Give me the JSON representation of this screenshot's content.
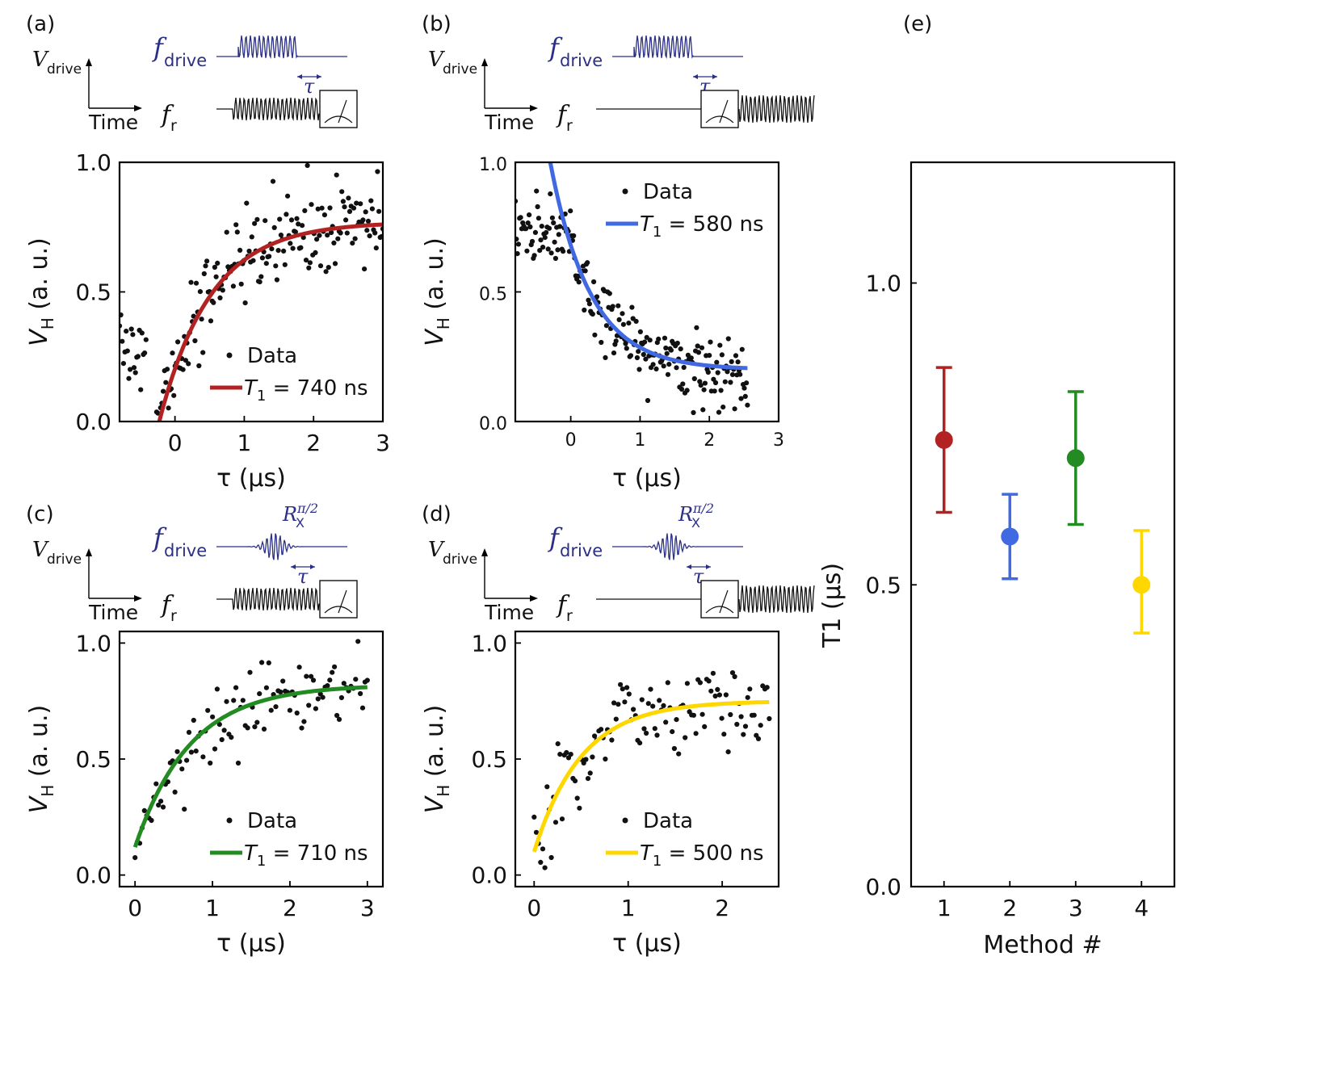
{
  "chart_data": [
    {
      "panel": "(a)",
      "type": "scatter",
      "xlabel": "τ (μs)",
      "ylabel": "V",
      "ylabel_sub": "H",
      "ylabel_unit": "(a. u.)",
      "xlim": [
        -0.8,
        3.0
      ],
      "ylim": [
        0,
        1
      ],
      "xticks": [
        "0",
        "1",
        "2",
        "3"
      ],
      "yticks": [
        "0.0",
        "0.5",
        "1.0"
      ],
      "legend_data": "Data",
      "legend_fit": "T",
      "legend_fit_sub": "1",
      "legend_fit_value": " = 740 ns",
      "legend_placement": "bottom-right",
      "fit": {
        "A": 0.85,
        "B": 0.77,
        "T1_us": 0.74,
        "x0": -0.3
      },
      "color": "#b22222",
      "seed": 11,
      "noise": 0.09,
      "npoints": 200,
      "sequence": {
        "drive_label": "f",
        "drive_sub": "drive",
        "read_label": "f",
        "read_sub": "r",
        "vaxis_label": "V",
        "vaxis_sub": "drive",
        "time_label": "Time",
        "tau_label": "τ",
        "mode": "readout-during",
        "pulse": "square"
      }
    },
    {
      "panel": "(b)",
      "type": "scatter",
      "xlabel": "τ (μs)",
      "ylabel": "V",
      "ylabel_sub": "H",
      "ylabel_unit": "(a. u.)",
      "xlim": [
        -0.8,
        3.0
      ],
      "ylim": [
        0,
        1
      ],
      "xticks": [
        "0",
        "1",
        "2",
        "3"
      ],
      "yticks": [
        "0.0",
        "0.5",
        "1.0"
      ],
      "legend_data": "Data",
      "legend_fit": "T",
      "legend_fit_sub": "1",
      "legend_fit_value": " = 580 ns",
      "legend_placement": "top-right",
      "fit": {
        "A": -0.48,
        "B": 0.2,
        "T1_us": 0.58,
        "x0": 0.0
      },
      "color": "#4169e1",
      "seed": 23,
      "noise": 0.07,
      "npoints": 220,
      "sequence": {
        "drive_label": "f",
        "drive_sub": "drive",
        "read_label": "f",
        "read_sub": "r",
        "vaxis_label": "V",
        "vaxis_sub": "drive",
        "time_label": "Time",
        "tau_label": "τ",
        "mode": "readout-after",
        "pulse": "square"
      }
    },
    {
      "panel": "(c)",
      "type": "scatter",
      "xlabel": "τ (μs)",
      "ylabel": "V",
      "ylabel_sub": "H",
      "ylabel_unit": "(a. u.)",
      "xlim": [
        -0.2,
        3.2
      ],
      "ylim": [
        -0.05,
        1.05
      ],
      "xticks": [
        "0",
        "1",
        "2",
        "3"
      ],
      "yticks": [
        "0.0",
        "0.5",
        "1.0"
      ],
      "legend_data": "Data",
      "legend_fit": "T",
      "legend_fit_sub": "1",
      "legend_fit_value": " = 710 ns",
      "legend_placement": "bottom-right",
      "fit": {
        "A": 0.7,
        "B": 0.82,
        "T1_us": 0.71,
        "x0": 0.0
      },
      "color": "#228b22",
      "seed": 37,
      "noise": 0.08,
      "npoints": 100,
      "sequence": {
        "drive_label": "f",
        "drive_sub": "drive",
        "read_label": "f",
        "read_sub": "r",
        "vaxis_label": "V",
        "vaxis_sub": "drive",
        "time_label": "Time",
        "tau_label": "τ",
        "gate_label": "R",
        "gate_sub": "X",
        "gate_sup": "π/2",
        "mode": "readout-during",
        "pulse": "gaussian"
      }
    },
    {
      "panel": "(d)",
      "type": "scatter",
      "xlabel": "τ (μs)",
      "ylabel": "V",
      "ylabel_sub": "H",
      "ylabel_unit": "(a. u.)",
      "xlim": [
        -0.2,
        2.6
      ],
      "ylim": [
        -0.05,
        1.05
      ],
      "xticks": [
        "0",
        "1",
        "2"
      ],
      "yticks": [
        "0.0",
        "0.5",
        "1.0"
      ],
      "legend_data": "Data",
      "legend_fit": "T",
      "legend_fit_sub": "1",
      "legend_fit_value": " = 500 ns",
      "legend_placement": "bottom-right",
      "fit": {
        "A": 0.65,
        "B": 0.75,
        "T1_us": 0.5,
        "x0": 0.0
      },
      "color": "#ffd700",
      "seed": 53,
      "noise": 0.1,
      "npoints": 110,
      "sequence": {
        "drive_label": "f",
        "drive_sub": "drive",
        "read_label": "f",
        "read_sub": "r",
        "vaxis_label": "V",
        "vaxis_sub": "drive",
        "time_label": "Time",
        "tau_label": "τ",
        "gate_label": "R",
        "gate_sub": "X",
        "gate_sup": "π/2",
        "mode": "readout-after",
        "pulse": "gaussian"
      }
    },
    {
      "panel": "(e)",
      "type": "scatter",
      "xlabel": "Method #",
      "ylabel": "T1 (μs)",
      "xlim": [
        0.5,
        4.5
      ],
      "ylim": [
        0,
        1.2
      ],
      "xticks": [
        "1",
        "2",
        "3",
        "4"
      ],
      "yticks": [
        "0.0",
        "0.5",
        "1.0"
      ],
      "points": [
        {
          "x": 1,
          "y": 0.74,
          "err_low": 0.62,
          "err_high": 0.86,
          "color": "#b22222"
        },
        {
          "x": 2,
          "y": 0.58,
          "err_low": 0.51,
          "err_high": 0.65,
          "color": "#4169e1"
        },
        {
          "x": 3,
          "y": 0.71,
          "err_low": 0.6,
          "err_high": 0.82,
          "color": "#228b22"
        },
        {
          "x": 4,
          "y": 0.5,
          "err_low": 0.42,
          "err_high": 0.59,
          "color": "#ffd700"
        }
      ]
    }
  ]
}
